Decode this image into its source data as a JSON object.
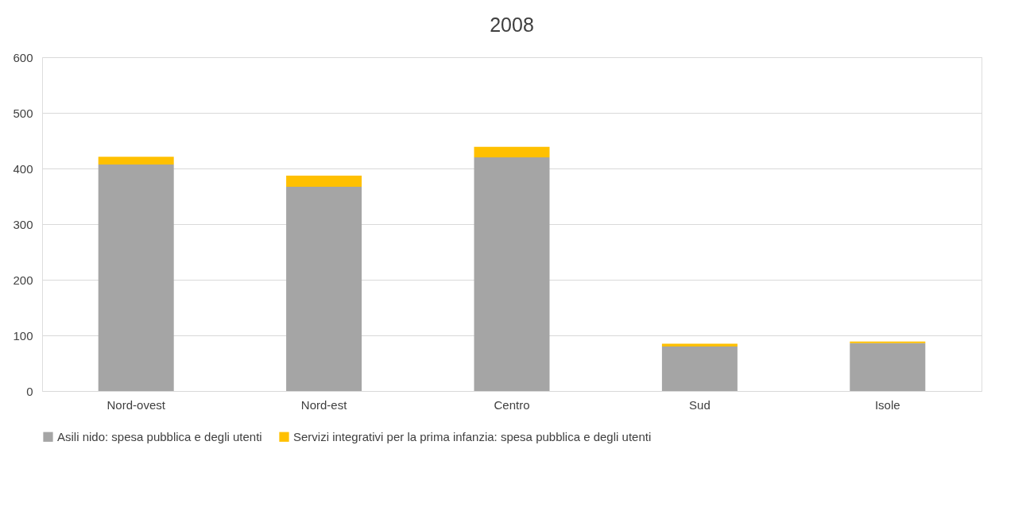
{
  "chart_data": {
    "type": "bar",
    "title": "2008",
    "stacked": true,
    "categories": [
      "Nord-ovest",
      "Nord-est",
      "Centro",
      "Sud",
      "Isole"
    ],
    "series": [
      {
        "name": "Asili nido: spesa pubblica e degli utenti",
        "color": "#a5a5a5",
        "values": [
          407,
          367,
          420,
          80,
          86
        ]
      },
      {
        "name": "Servizi integrativi per la prima infanzia: spesa pubblica e degli utenti",
        "color": "#ffc000",
        "values": [
          14,
          20,
          19,
          5,
          3
        ]
      }
    ],
    "ylim": [
      0,
      600
    ],
    "yticks": [
      0,
      100,
      200,
      300,
      400,
      500,
      600
    ],
    "grid": "y",
    "legend": "bottom"
  }
}
